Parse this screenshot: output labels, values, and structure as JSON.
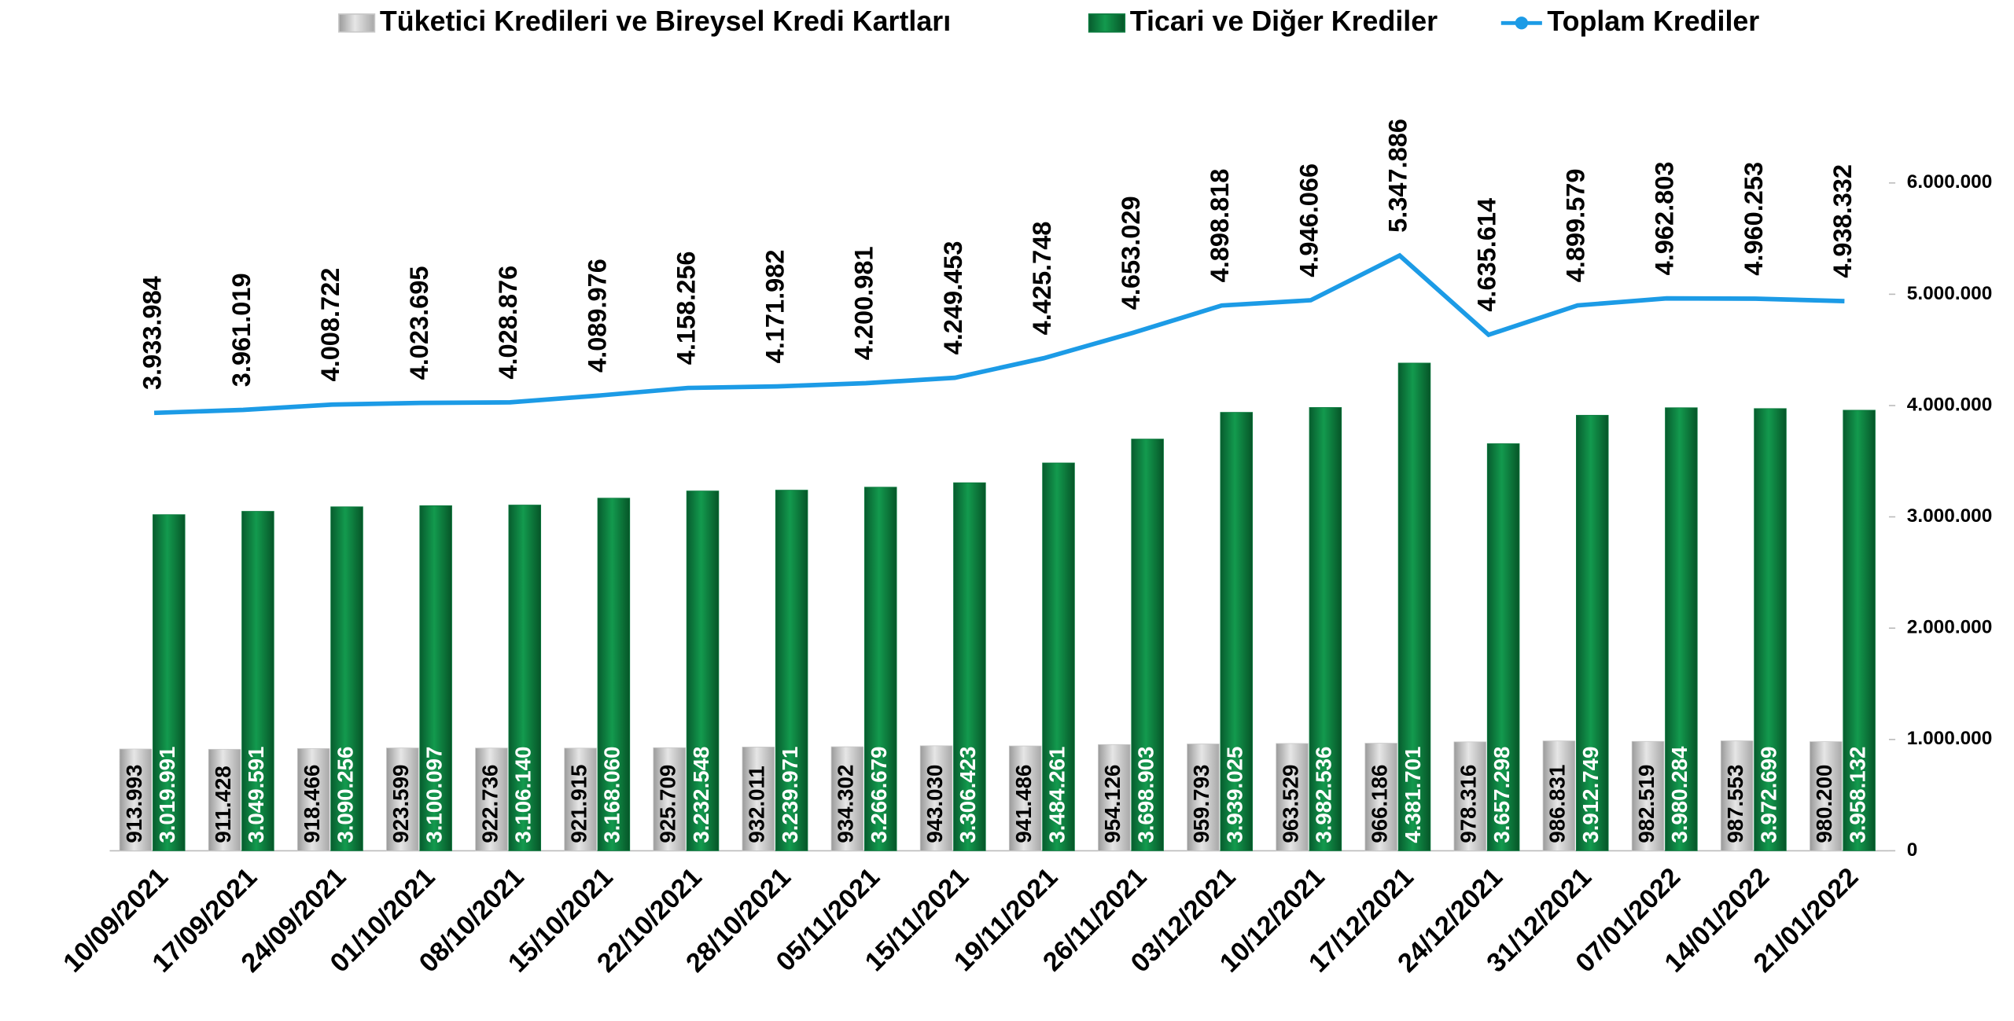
{
  "chart_data": {
    "type": "bar_line",
    "categories": [
      "10/09/2021",
      "17/09/2021",
      "24/09/2021",
      "01/10/2021",
      "08/10/2021",
      "15/10/2021",
      "22/10/2021",
      "28/10/2021",
      "05/11/2021",
      "15/11/2021",
      "19/11/2021",
      "26/11/2021",
      "03/12/2021",
      "10/12/2021",
      "17/12/2021",
      "24/12/2021",
      "31/12/2021",
      "07/01/2022",
      "14/01/2022",
      "21/01/2022"
    ],
    "series": [
      {
        "name": "Tüketici Kredileri ve Bireysel Kredi Kartları",
        "type": "bar",
        "color": "#c8c8c8",
        "values": [
          913993,
          911428,
          918466,
          923599,
          922736,
          921915,
          925709,
          932011,
          934302,
          943030,
          941486,
          954126,
          959793,
          963529,
          966186,
          978316,
          986831,
          982519,
          987553,
          980200
        ],
        "value_labels": [
          "913.993",
          "911.428",
          "918.466",
          "923.599",
          "922.736",
          "921.915",
          "925.709",
          "932.011",
          "934.302",
          "943.030",
          "941.486",
          "954.126",
          "959.793",
          "963.529",
          "966.186",
          "978.316",
          "986.831",
          "982.519",
          "987.553",
          "980.200"
        ]
      },
      {
        "name": "Ticari ve Diğer Krediler",
        "type": "bar",
        "color": "#0b7a3e",
        "values": [
          3019991,
          3049591,
          3090256,
          3100097,
          3106140,
          3168060,
          3232548,
          3239971,
          3266679,
          3306423,
          3484261,
          3698903,
          3939025,
          3982536,
          4381701,
          3657298,
          3912749,
          3980284,
          3972699,
          3958132
        ],
        "value_labels": [
          "3.019.991",
          "3.049.591",
          "3.090.256",
          "3.100.097",
          "3.106.140",
          "3.168.060",
          "3.232.548",
          "3.239.971",
          "3.266.679",
          "3.306.423",
          "3.484.261",
          "3.698.903",
          "3.939.025",
          "3.982.536",
          "4.381.701",
          "3.657.298",
          "3.912.749",
          "3.980.284",
          "3.972.699",
          "3.958.132"
        ]
      },
      {
        "name": "Toplam Krediler",
        "type": "line",
        "color": "#1c9be6",
        "values": [
          3933984,
          3961019,
          4008722,
          4023695,
          4028876,
          4089976,
          4158256,
          4171982,
          4200981,
          4249453,
          4425748,
          4653029,
          4898818,
          4946066,
          5347886,
          4635614,
          4899579,
          4962803,
          4960253,
          4938332
        ],
        "value_labels": [
          "3.933.984",
          "3.961.019",
          "4.008.722",
          "4.023.695",
          "4.028.876",
          "4.089.976",
          "4.158.256",
          "4.171.982",
          "4.200.981",
          "4.249.453",
          "4.425.748",
          "4.653.029",
          "4.898.818",
          "4.946.066",
          "5.347.886",
          "4.635.614",
          "4.899.579",
          "4.962.803",
          "4.960.253",
          "4.938.332"
        ]
      }
    ],
    "ylim": [
      0,
      7000000
    ],
    "yticks": [
      0,
      {
        "value": 1000000,
        "label": "1.000.000"
      },
      {
        "value": 2000000,
        "label": "2.000.000"
      },
      {
        "value": 3000000,
        "label": "3.000.000"
      },
      {
        "value": 4000000,
        "label": "4.000.000"
      },
      {
        "value": 5000000,
        "label": "5.000.000"
      },
      {
        "value": 6000000,
        "label": "6.000.000"
      }
    ],
    "legend": "top",
    "grid": false
  }
}
